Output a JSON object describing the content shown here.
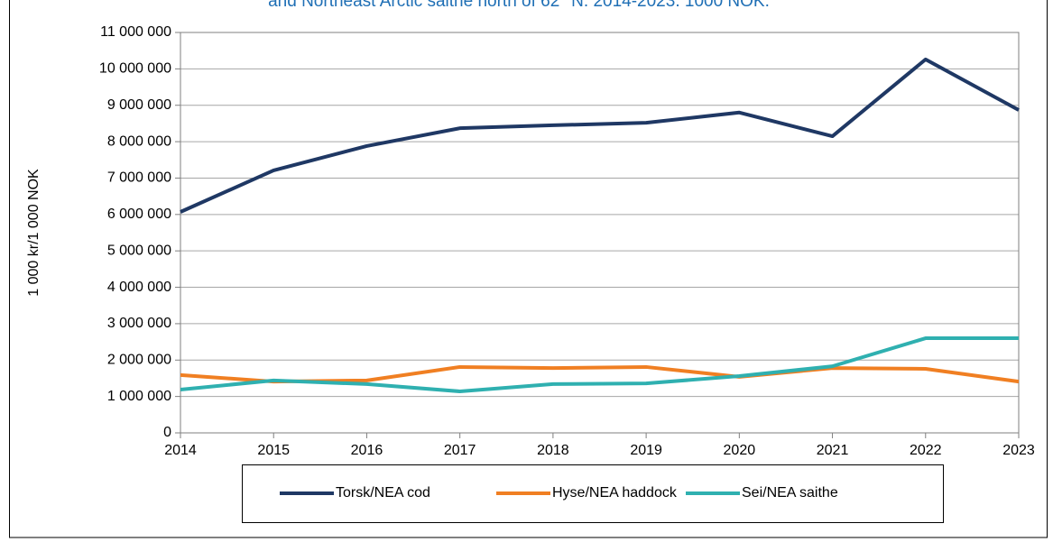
{
  "chart_data": {
    "type": "line",
    "title": "and Northeast Arctic saithe north of 62° N. 2014-2023. 1000 NOK.",
    "y_label": "1 000 kr/1 000 NOK",
    "x": [
      2014,
      2015,
      2016,
      2017,
      2018,
      2019,
      2020,
      2021,
      2022,
      2023
    ],
    "xlim": [
      2014,
      2023
    ],
    "xticks": [
      2014,
      2015,
      2016,
      2017,
      2018,
      2019,
      2020,
      2021,
      2022,
      2023
    ],
    "ylim": [
      0,
      11000000
    ],
    "yticks": [
      0,
      {
        "value": 1000000,
        "label": "1 000 000"
      },
      {
        "value": 2000000,
        "label": "2 000 000"
      },
      {
        "value": 3000000,
        "label": "3 000 000"
      },
      {
        "value": 4000000,
        "label": "4 000 000"
      },
      {
        "value": 5000000,
        "label": "5 000 000"
      },
      {
        "value": 6000000,
        "label": "6 000 000"
      },
      {
        "value": 7000000,
        "label": "7 000 000"
      },
      {
        "value": 8000000,
        "label": "8 000 000"
      },
      {
        "value": 9000000,
        "label": "9 000 000"
      },
      {
        "value": 10000000,
        "label": "10 000 000"
      },
      {
        "value": 11000000,
        "label": "11 000 000"
      }
    ],
    "grid": true,
    "legend": "bottom",
    "series": [
      {
        "name": "Torsk/NEA cod",
        "color": "#1f3864",
        "values": [
          6070000,
          7210000,
          7880000,
          8370000,
          8450000,
          8520000,
          8800000,
          8150000,
          10260000,
          8870000
        ]
      },
      {
        "name": "Hyse/NEA haddock",
        "color": "#f07f22",
        "values": [
          1590000,
          1410000,
          1440000,
          1810000,
          1780000,
          1810000,
          1540000,
          1780000,
          1760000,
          1410000
        ]
      },
      {
        "name": "Sei/NEA saithe",
        "color": "#2fb0b0",
        "values": [
          1190000,
          1440000,
          1340000,
          1140000,
          1340000,
          1360000,
          1560000,
          1830000,
          2600000,
          2600000
        ]
      }
    ]
  }
}
